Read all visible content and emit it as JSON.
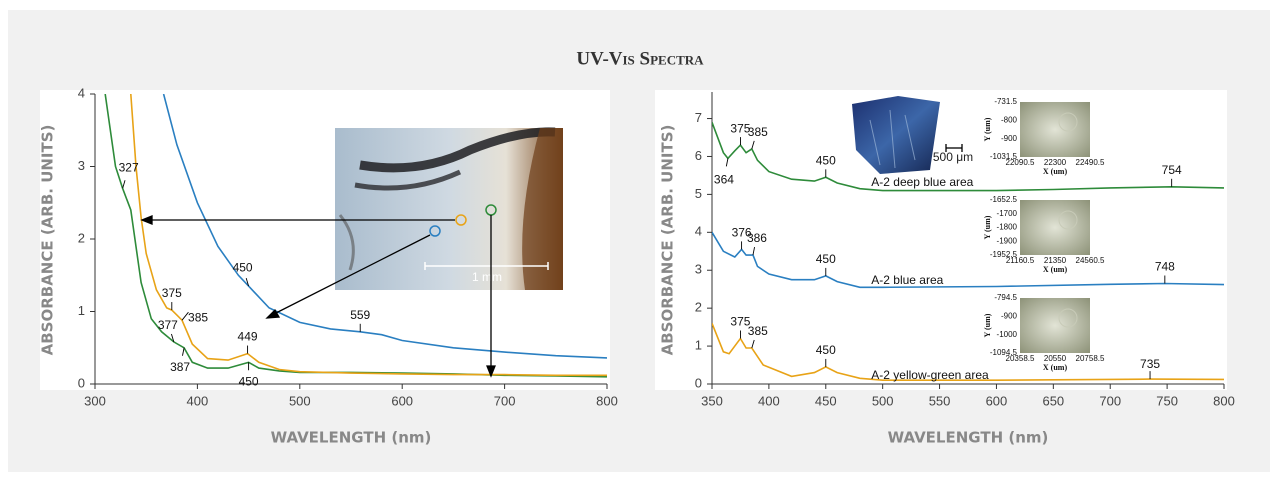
{
  "title": "UV-Vis Spectra",
  "chart_data": [
    {
      "type": "line",
      "xlabel": "WAVELENGTH (nm)",
      "ylabel": "ABSORBANCE (ARB. UNITS)",
      "xlim": [
        300,
        800
      ],
      "ylim": [
        0,
        4
      ],
      "xticks": [
        300,
        400,
        500,
        600,
        700,
        800
      ],
      "yticks": [
        0,
        1,
        2,
        3,
        4
      ],
      "series": [
        {
          "color": "#2e8b3a",
          "x": [
            310,
            320,
            327,
            335,
            345,
            355,
            365,
            377,
            387,
            395,
            410,
            430,
            450,
            460,
            480,
            500,
            550,
            600,
            650,
            700,
            750,
            800
          ],
          "values": [
            4.0,
            3.0,
            2.7,
            2.4,
            1.4,
            0.9,
            0.72,
            0.58,
            0.5,
            0.3,
            0.22,
            0.22,
            0.3,
            0.22,
            0.18,
            0.16,
            0.16,
            0.15,
            0.14,
            0.12,
            0.11,
            0.1
          ]
        },
        {
          "color": "#e8a317",
          "x": [
            335,
            340,
            345,
            350,
            360,
            370,
            375,
            380,
            385,
            395,
            410,
            430,
            449,
            460,
            480,
            500,
            550,
            600,
            650,
            700,
            750,
            800
          ],
          "values": [
            4.0,
            3.0,
            2.3,
            1.8,
            1.3,
            1.05,
            1.02,
            0.95,
            0.88,
            0.55,
            0.35,
            0.33,
            0.42,
            0.3,
            0.2,
            0.17,
            0.15,
            0.14,
            0.13,
            0.13,
            0.12,
            0.12
          ]
        },
        {
          "color": "#2a7fc1",
          "x": [
            367,
            380,
            400,
            420,
            440,
            450,
            470,
            500,
            530,
            559,
            580,
            600,
            650,
            700,
            750,
            800
          ],
          "values": [
            4.0,
            3.3,
            2.5,
            1.9,
            1.5,
            1.35,
            1.05,
            0.85,
            0.76,
            0.72,
            0.68,
            0.6,
            0.5,
            0.44,
            0.39,
            0.36
          ]
        }
      ],
      "annotations": [
        {
          "x": 327,
          "y": 2.7
        },
        {
          "x": 375,
          "y": 1.02
        },
        {
          "x": 385,
          "y": 0.88
        },
        {
          "x": 377,
          "y": 0.58
        },
        {
          "x": 387,
          "y": 0.5
        },
        {
          "x": 449,
          "y": 0.42
        },
        {
          "x": 450,
          "y": 0.3
        },
        {
          "x": 450,
          "y": 1.35
        },
        {
          "x": 559,
          "y": 0.72
        }
      ],
      "scale_label": "1 mm"
    },
    {
      "type": "line",
      "xlabel": "WAVELENGTH (nm)",
      "ylabel": "ABSORBANCE (ARB. UNITS)",
      "xlim": [
        350,
        800
      ],
      "ylim": [
        0,
        7.7
      ],
      "xticks": [
        350,
        400,
        450,
        500,
        550,
        600,
        650,
        700,
        750,
        800
      ],
      "yticks": [
        0,
        1,
        2,
        3,
        4,
        5,
        6,
        7
      ],
      "series": [
        {
          "name": "A-2 deep blue area",
          "color": "#2e8b3a",
          "x": [
            350,
            360,
            364,
            370,
            375,
            380,
            385,
            390,
            400,
            420,
            440,
            450,
            460,
            480,
            500,
            550,
            600,
            650,
            700,
            754,
            800
          ],
          "values": [
            6.9,
            6.1,
            5.95,
            6.15,
            6.3,
            6.1,
            6.2,
            5.9,
            5.6,
            5.4,
            5.35,
            5.45,
            5.3,
            5.15,
            5.1,
            5.1,
            5.1,
            5.13,
            5.17,
            5.2,
            5.17
          ]
        },
        {
          "name": "A-2 blue area",
          "color": "#2a7fc1",
          "x": [
            350,
            360,
            370,
            376,
            380,
            386,
            390,
            400,
            420,
            440,
            450,
            460,
            480,
            500,
            600,
            700,
            748,
            800
          ],
          "values": [
            4.0,
            3.5,
            3.35,
            3.55,
            3.4,
            3.4,
            3.1,
            2.9,
            2.75,
            2.75,
            2.85,
            2.7,
            2.55,
            2.55,
            2.57,
            2.63,
            2.65,
            2.62
          ]
        },
        {
          "name": "A-2 yellow-green area",
          "color": "#e8a317",
          "x": [
            350,
            360,
            365,
            375,
            380,
            385,
            395,
            420,
            440,
            450,
            460,
            480,
            500,
            600,
            700,
            735,
            800
          ],
          "values": [
            1.6,
            0.85,
            0.8,
            1.2,
            0.95,
            0.95,
            0.5,
            0.2,
            0.3,
            0.45,
            0.3,
            0.15,
            0.1,
            0.1,
            0.12,
            0.13,
            0.12
          ]
        }
      ],
      "annotations": [
        {
          "x": 364,
          "y": 5.95
        },
        {
          "x": 375,
          "y": 6.3
        },
        {
          "x": 385,
          "y": 6.2
        },
        {
          "x": 450,
          "y": 5.45
        },
        {
          "x": 754,
          "y": 5.2
        },
        {
          "x": 376,
          "y": 3.55
        },
        {
          "x": 386,
          "y": 3.4
        },
        {
          "x": 450,
          "y": 2.85
        },
        {
          "x": 748,
          "y": 2.65
        },
        {
          "x": 375,
          "y": 1.2
        },
        {
          "x": 385,
          "y": 0.95
        },
        {
          "x": 450,
          "y": 0.45
        },
        {
          "x": 735,
          "y": 0.13
        }
      ],
      "scale_label": "500 μm",
      "insets": [
        {
          "ylabel": "Y (um)",
          "xlabel": "X (um)",
          "yticks": [
            "-731.5",
            "-800",
            "-900",
            "-1031.5"
          ],
          "xticks": [
            "22090.5",
            "22300",
            "22490.5"
          ]
        },
        {
          "ylabel": "Y (um)",
          "xlabel": "X (um)",
          "yticks": [
            "-1652.5",
            "-1700",
            "-1800",
            "-1900",
            "-1952.5"
          ],
          "xticks": [
            "21160.5",
            "21350",
            "24560.5"
          ]
        },
        {
          "ylabel": "Y (um)",
          "xlabel": "X (um)",
          "yticks": [
            "-794.5",
            "-900",
            "-1000",
            "-1094.5"
          ],
          "xticks": [
            "20358.5",
            "20550",
            "20758.5"
          ]
        }
      ]
    }
  ]
}
